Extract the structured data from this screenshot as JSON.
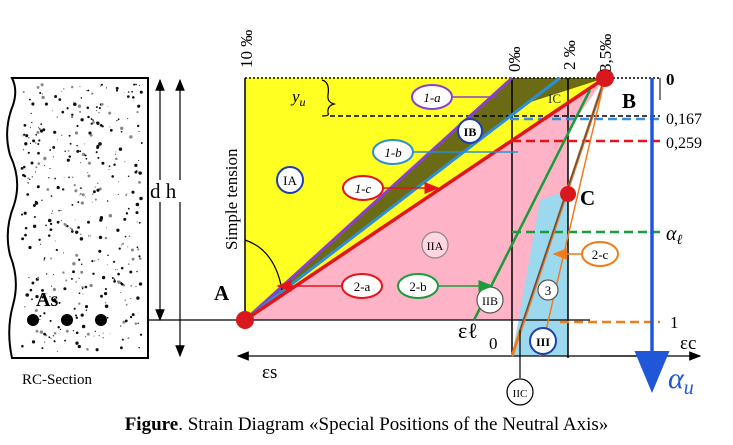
{
  "section": {
    "label": "RC-Section",
    "height_label": "d h",
    "steel_label": "As"
  },
  "top_labels": {
    "strain_10": "10 ‰",
    "strain_0": "0‰",
    "strain_2": "2 ‰",
    "strain_35": "3,5‰"
  },
  "right_labels": {
    "v0": "0",
    "v0167": "0,167",
    "v0259": "0,259",
    "alpha_l": "α",
    "alpha_l_sub": "ℓ",
    "v1": "1"
  },
  "axis_labels": {
    "eps_s": "εs",
    "eps_c": "εc",
    "eps_l": "εℓ",
    "origin": "0",
    "alpha_u": "α",
    "alpha_u_sub": "u",
    "yu": "y",
    "yu_sub": "u"
  },
  "points": {
    "A": "A",
    "B": "B",
    "C": "C"
  },
  "zones": {
    "IA": "IA",
    "IB": "IB",
    "IC": "IC",
    "IIA": "IIA",
    "IIB": "IIB",
    "IIC": "IIC",
    "III": "III",
    "three": "3"
  },
  "pivot_labels": {
    "1a": "1-a",
    "1b": "1-b",
    "1c": "1-c",
    "2a": "2-a",
    "2b": "2-b",
    "2c": "2-c"
  },
  "simple_tension": "Simple tension",
  "caption": {
    "bold": "Figure",
    "text": ". Strain Diagram «Special Positions of the Neutral Axis»"
  }
}
